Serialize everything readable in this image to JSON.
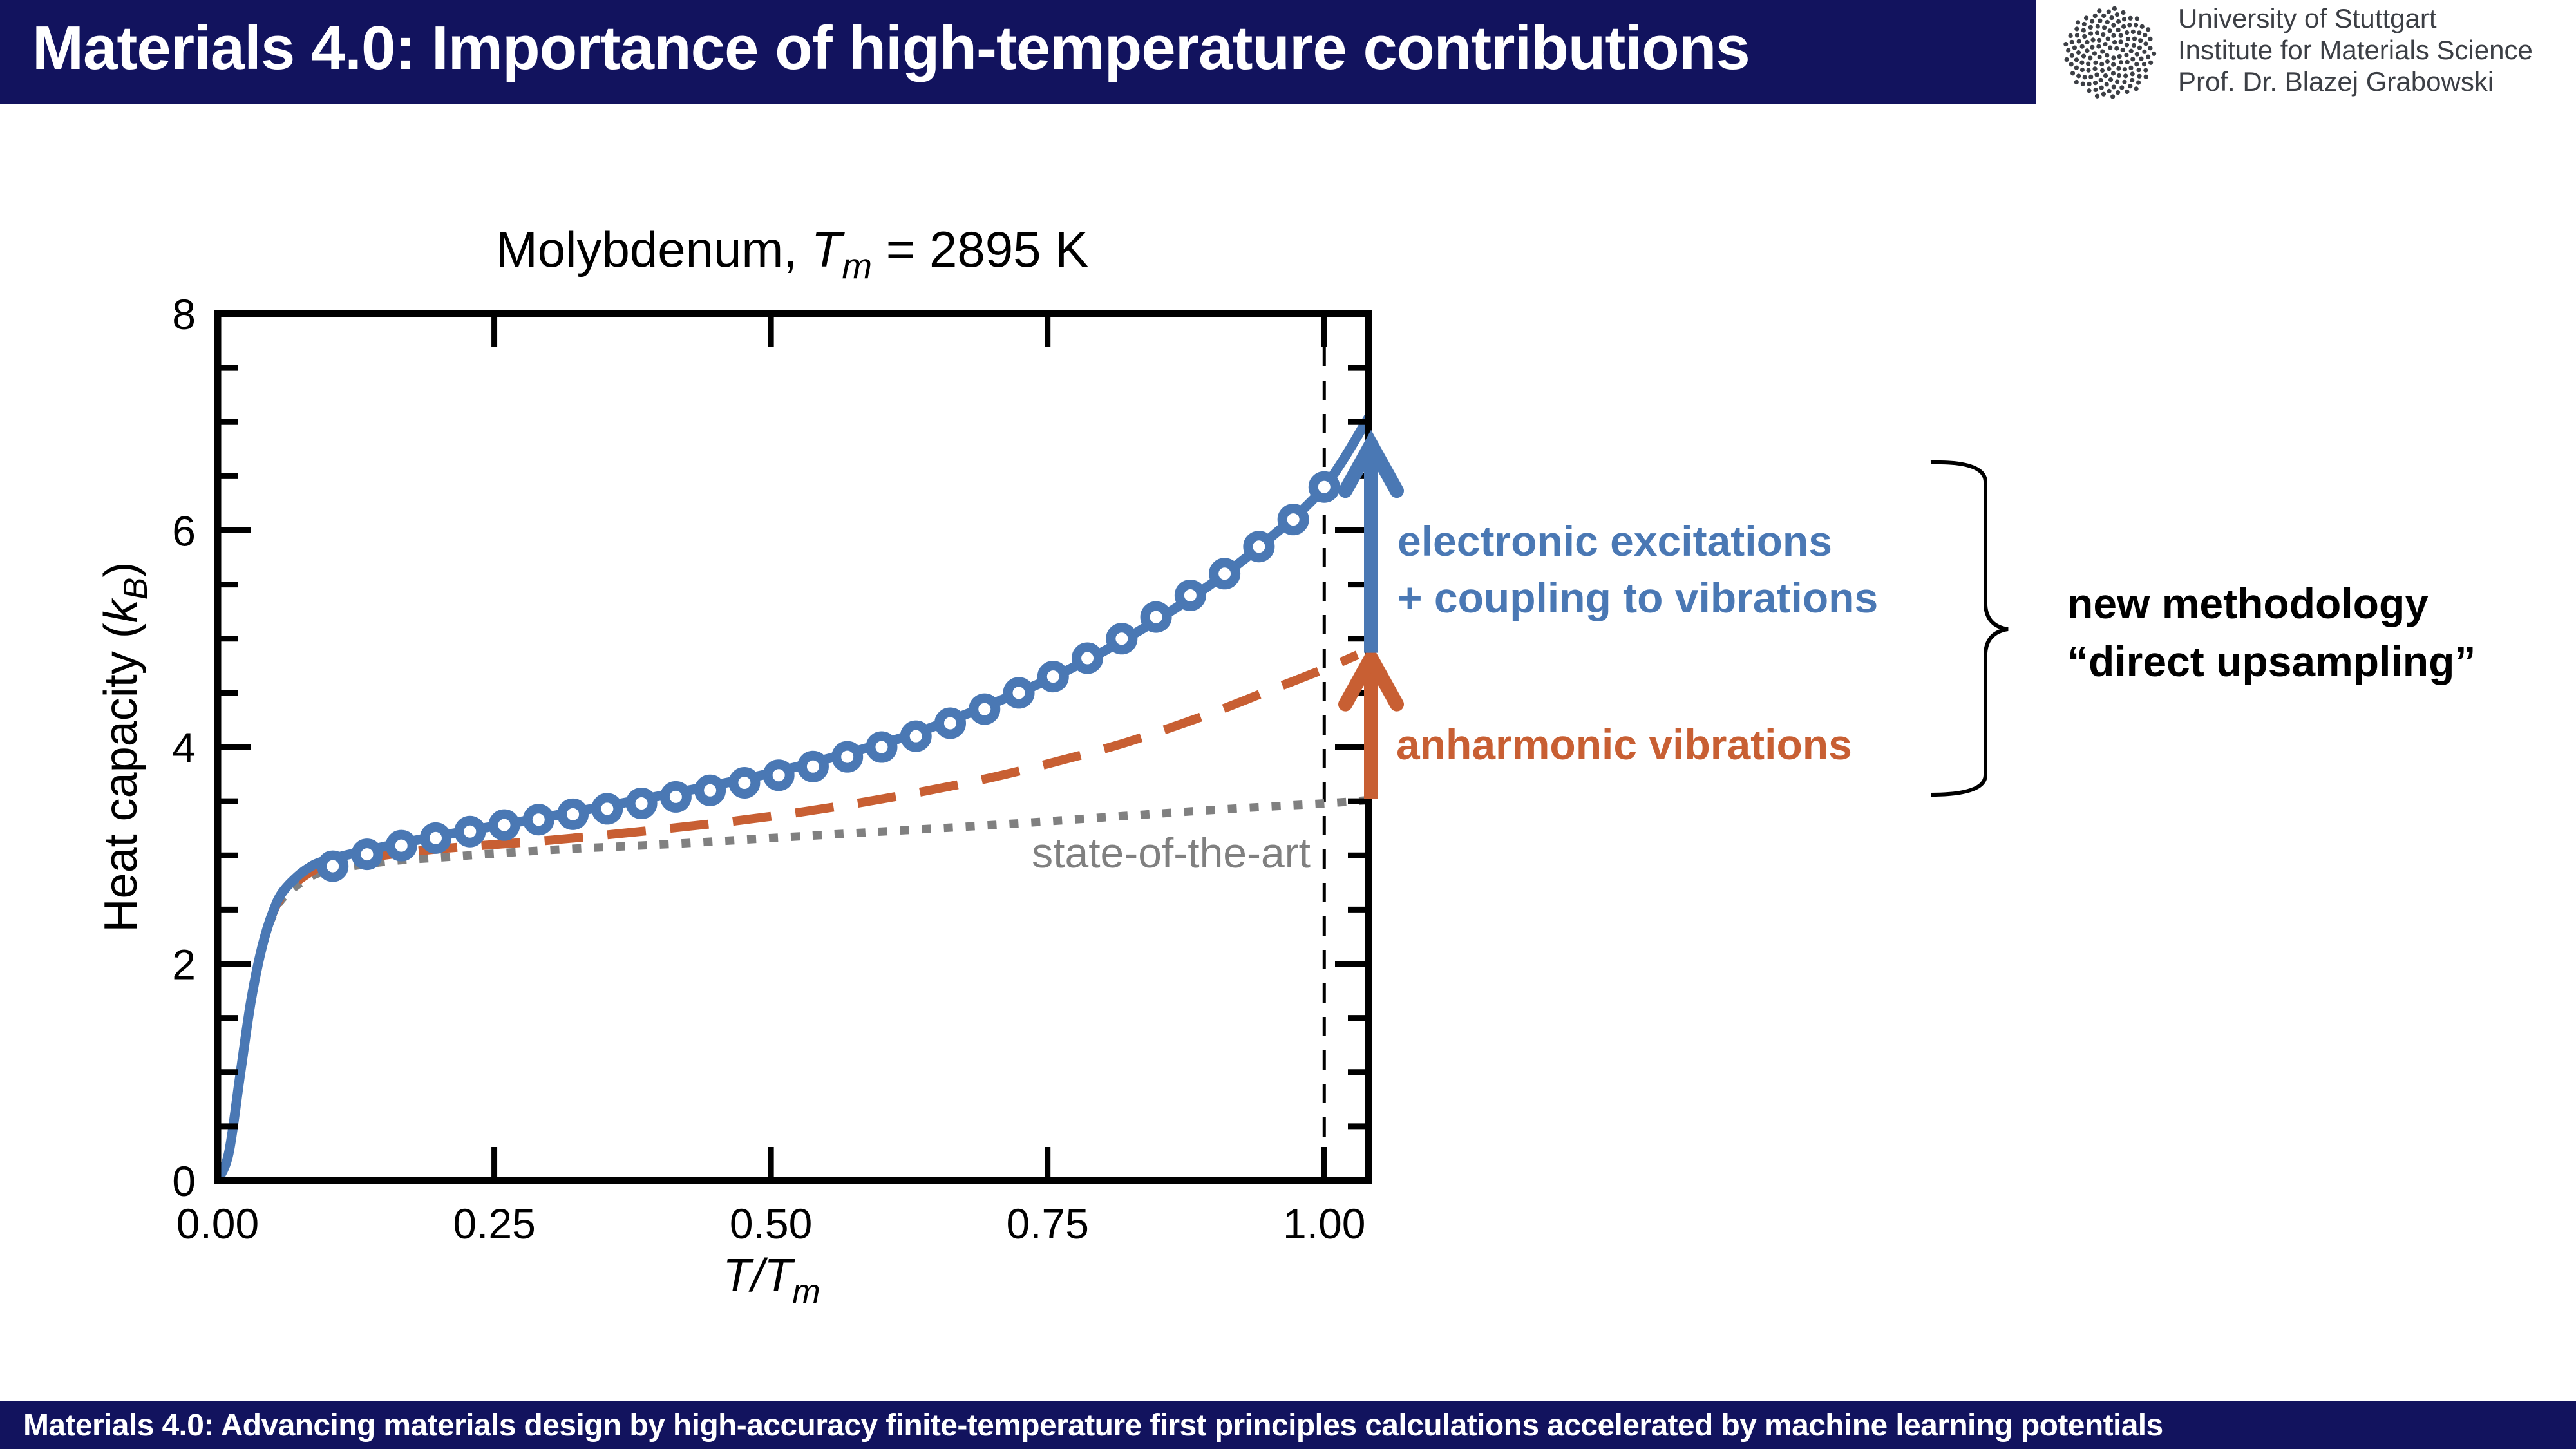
{
  "header": {
    "title": "Materials 4.0: Importance of high-temperature contributions",
    "logo_icon": "university-of-stuttgart-logo",
    "affiliation": [
      "University of Stuttgart",
      "Institute for Materials Science",
      "Prof. Dr. Blazej Grabowski"
    ]
  },
  "footer": {
    "text": "Materials 4.0: Advancing materials design by high-accuracy finite-temperature first principles calculations accelerated by machine learning potentials"
  },
  "colors": {
    "header_bg": "#12135e",
    "blue": "#4a78b4",
    "orange": "#c85f33",
    "gray": "#808080"
  },
  "annotations": {
    "electronic": [
      "electronic excitations",
      "+ coupling to vibrations"
    ],
    "anharmonic": "anharmonic vibrations",
    "methodology": [
      "new methodology",
      "“direct upsampling”"
    ],
    "state_of_the_art": "state-of-the-art"
  },
  "chart_data": {
    "type": "line",
    "title": "Molybdenum, T_m = 2895 K",
    "title_parts": {
      "prefix": "Molybdenum, ",
      "T": "T",
      "sub": "m",
      "suffix": " = 2895 K"
    },
    "xlabel": "T/T_m",
    "xlabel_parts": {
      "main": "T/T",
      "sub": "m"
    },
    "ylabel": "Heat capacity (k_B)",
    "ylabel_parts": {
      "prefix": "Heat capacity (",
      "k": "k",
      "sub": "B",
      "suffix": ")"
    },
    "xlim": [
      0.0,
      1.04
    ],
    "ylim": [
      0,
      8
    ],
    "xticks": [
      0.0,
      0.25,
      0.5,
      0.75,
      1.0
    ],
    "xtick_labels": [
      "0.00",
      "0.25",
      "0.50",
      "0.75",
      "1.00"
    ],
    "yticks": [
      0,
      2,
      4,
      6,
      8
    ],
    "ytick_labels": [
      "0",
      "2",
      "4",
      "6",
      "8"
    ],
    "yminor_step": 0.5,
    "grid": false,
    "melting_line_x": 1.0,
    "series": [
      {
        "name": "state-of-the-art",
        "style": "dotted",
        "color": "#808080",
        "x": [
          0.0,
          0.01,
          0.02,
          0.03,
          0.04,
          0.05,
          0.06,
          0.08,
          0.1,
          0.15,
          0.2,
          0.3,
          0.4,
          0.5,
          0.6,
          0.7,
          0.8,
          0.9,
          1.0,
          1.04
        ],
        "y": [
          0.0,
          0.25,
          0.95,
          1.65,
          2.15,
          2.45,
          2.62,
          2.78,
          2.86,
          2.94,
          2.98,
          3.05,
          3.1,
          3.16,
          3.22,
          3.28,
          3.35,
          3.42,
          3.48,
          3.51
        ]
      },
      {
        "name": "anharmonic vibrations",
        "style": "dashed",
        "color": "#c85f33",
        "x": [
          0.0,
          0.01,
          0.02,
          0.03,
          0.04,
          0.05,
          0.06,
          0.08,
          0.1,
          0.15,
          0.2,
          0.3,
          0.4,
          0.5,
          0.6,
          0.7,
          0.8,
          0.85,
          0.9,
          0.95,
          1.0,
          1.03
        ],
        "y": [
          0.0,
          0.25,
          0.95,
          1.65,
          2.15,
          2.47,
          2.65,
          2.82,
          2.91,
          3.0,
          3.06,
          3.14,
          3.24,
          3.36,
          3.52,
          3.72,
          3.98,
          4.14,
          4.32,
          4.52,
          4.72,
          4.85
        ]
      },
      {
        "name": "electronic excitations + coupling to vibrations",
        "style": "solid",
        "color": "#4a78b4",
        "x": [
          0.0,
          0.01,
          0.02,
          0.03,
          0.04,
          0.05,
          0.06,
          0.08,
          0.1,
          0.15,
          0.2,
          0.3,
          0.4,
          0.5,
          0.6,
          0.65,
          0.7,
          0.75,
          0.8,
          0.85,
          0.9,
          0.95,
          1.0,
          1.04
        ],
        "y": [
          0.0,
          0.25,
          0.95,
          1.65,
          2.15,
          2.48,
          2.68,
          2.87,
          2.96,
          3.08,
          3.18,
          3.36,
          3.55,
          3.76,
          4.03,
          4.2,
          4.4,
          4.62,
          4.88,
          5.18,
          5.52,
          5.92,
          6.4,
          7.04
        ]
      },
      {
        "name": "direct upsampling (markers)",
        "style": "markers",
        "color": "#4a78b4",
        "x": [
          0.104,
          0.135,
          0.166,
          0.197,
          0.228,
          0.259,
          0.29,
          0.321,
          0.352,
          0.383,
          0.414,
          0.445,
          0.476,
          0.507,
          0.538,
          0.569,
          0.6,
          0.631,
          0.662,
          0.693,
          0.724,
          0.755,
          0.786,
          0.817,
          0.848,
          0.879,
          0.91,
          0.941,
          0.972,
          1.0
        ],
        "y": [
          2.9,
          3.01,
          3.09,
          3.16,
          3.22,
          3.28,
          3.33,
          3.38,
          3.43,
          3.48,
          3.54,
          3.6,
          3.67,
          3.74,
          3.82,
          3.91,
          4.0,
          4.1,
          4.22,
          4.35,
          4.5,
          4.65,
          4.82,
          5.0,
          5.2,
          5.4,
          5.6,
          5.85,
          6.1,
          6.4
        ]
      }
    ],
    "arrows": [
      {
        "name": "anharmonic-arrow",
        "x": 1.04,
        "from": 3.52,
        "to": 4.87,
        "color": "#c85f33"
      },
      {
        "name": "electronic-arrow",
        "x": 1.04,
        "from": 4.87,
        "to": 6.84,
        "color": "#4a78b4"
      }
    ]
  }
}
